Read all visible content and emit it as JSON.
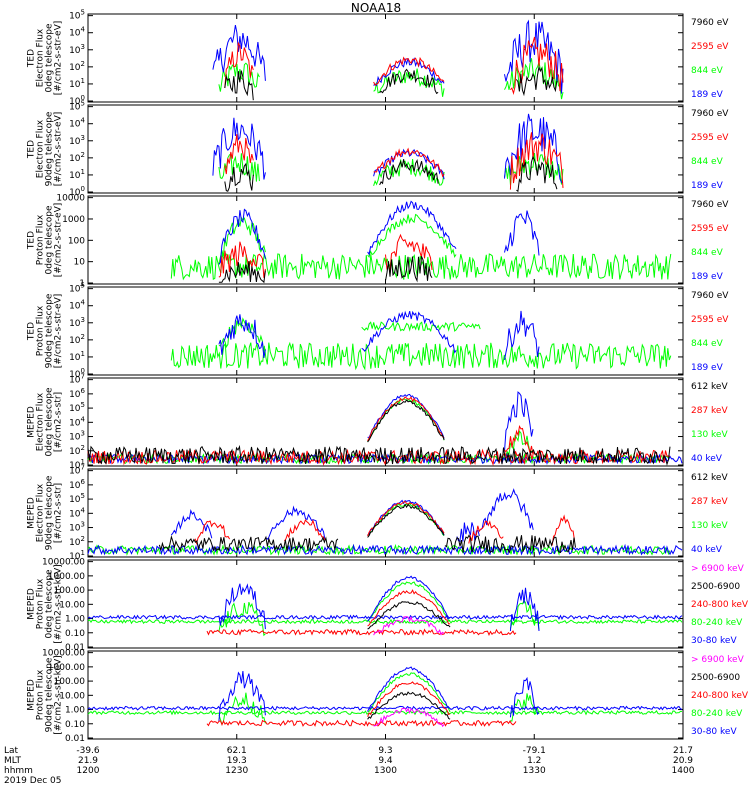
{
  "figure": {
    "title": "NOAA18",
    "date": "2019 Dec 05"
  },
  "colors": {
    "blue": "#0000ff",
    "red": "#ff0000",
    "green": "#00ff00",
    "black": "#000000",
    "magenta": "#ff00ff"
  },
  "footer": {
    "row_labels": [
      "Lat",
      "MLT",
      "hhmm"
    ],
    "columns": [
      {
        "lat": "-39.6",
        "mlt": "21.9",
        "hhmm": "1200"
      },
      {
        "lat": "62.1",
        "mlt": "19.3",
        "hhmm": "1230"
      },
      {
        "lat": "9.3",
        "mlt": "9.4",
        "hhmm": "1300"
      },
      {
        "lat": "-79.1",
        "mlt": "1.2",
        "hhmm": "1330"
      },
      {
        "lat": "21.7",
        "mlt": "20.9",
        "hhmm": "1400"
      }
    ]
  },
  "chart_data": [
    {
      "type": "line",
      "ylabel": [
        "TED",
        "Electron Flux",
        "0deg telescope",
        "[#/cm2-s-str-eV]"
      ],
      "yscale": "log",
      "yticks": [
        "10^0",
        "10^1",
        "10^2",
        "10^3",
        "10^4",
        "10^5"
      ],
      "ylim_exp": [
        0,
        5
      ],
      "xlim": [
        "1200",
        "1400"
      ],
      "legend": [
        {
          "label": "7960 eV",
          "color": "black"
        },
        {
          "label": "2595 eV",
          "color": "red"
        },
        {
          "label": "844 eV",
          "color": "green"
        },
        {
          "label": "189 eV",
          "color": "blue"
        }
      ]
    },
    {
      "type": "line",
      "ylabel": [
        "TED",
        "Electron Flux",
        "90deg telescope",
        "[#/cm2-s-str-eV]"
      ],
      "yscale": "log",
      "yticks": [
        "10^0",
        "10^1",
        "10^2",
        "10^3",
        "10^4",
        "10^5"
      ],
      "ylim_exp": [
        0,
        5
      ],
      "xlim": [
        "1200",
        "1400"
      ],
      "legend": [
        {
          "label": "7960 eV",
          "color": "black"
        },
        {
          "label": "2595 eV",
          "color": "red"
        },
        {
          "label": "844 eV",
          "color": "green"
        },
        {
          "label": "189 eV",
          "color": "blue"
        }
      ]
    },
    {
      "type": "line",
      "ylabel": [
        "TED",
        "Proton Flux",
        "0deg telescope",
        "[#/cm2-s-str-eV]"
      ],
      "yscale": "log",
      "yticks": [
        "1",
        "10",
        "100",
        "1000",
        "10000"
      ],
      "ylim_exp": [
        -0.2,
        4.15
      ],
      "xlim": [
        "1200",
        "1400"
      ],
      "legend": [
        {
          "label": "7960 eV",
          "color": "black"
        },
        {
          "label": "2595 eV",
          "color": "red"
        },
        {
          "label": "844 eV",
          "color": "green"
        },
        {
          "label": "189 eV",
          "color": "blue"
        }
      ]
    },
    {
      "type": "line",
      "ylabel": [
        "TED",
        "Proton Flux",
        "90deg telescope",
        "[#/cm2-s-str-eV]"
      ],
      "yscale": "log",
      "yticks": [
        "10^0",
        "10^1",
        "10^2",
        "10^3",
        "10^4",
        "10^5"
      ],
      "ylim_exp": [
        0,
        5
      ],
      "xlim": [
        "1200",
        "1400"
      ],
      "legend": [
        {
          "label": "7960 eV",
          "color": "black"
        },
        {
          "label": "2595 eV",
          "color": "red"
        },
        {
          "label": "844 eV",
          "color": "green"
        },
        {
          "label": "189 eV",
          "color": "blue"
        }
      ]
    },
    {
      "type": "line",
      "ylabel": [
        "MEPED",
        "Electron Flux",
        "0deg telescope",
        "[#/cm2-s-str]"
      ],
      "yscale": "log",
      "yticks": [
        "10^1",
        "10^2",
        "10^3",
        "10^4",
        "10^5",
        "10^6",
        "10^7"
      ],
      "ylim_exp": [
        1,
        7
      ],
      "xlim": [
        "1200",
        "1400"
      ],
      "legend": [
        {
          "label": "612 keV",
          "color": "black"
        },
        {
          "label": "287 keV",
          "color": "red"
        },
        {
          "label": "130 keV",
          "color": "green"
        },
        {
          "label": "40 keV",
          "color": "blue"
        }
      ]
    },
    {
      "type": "line",
      "ylabel": [
        "MEPED",
        "Electron Flux",
        "90deg telescope",
        "[#/cm2-s-str]"
      ],
      "yscale": "log",
      "yticks": [
        "10^1",
        "10^2",
        "10^3",
        "10^4",
        "10^5",
        "10^6",
        "10^7"
      ],
      "ylim_exp": [
        1,
        7
      ],
      "xlim": [
        "1200",
        "1400"
      ],
      "legend": [
        {
          "label": "612 keV",
          "color": "black"
        },
        {
          "label": "287 keV",
          "color": "red"
        },
        {
          "label": "130 keV",
          "color": "green"
        },
        {
          "label": "40 keV",
          "color": "blue"
        }
      ]
    },
    {
      "type": "line",
      "ylabel": [
        "MEPED",
        "Proton Flux",
        "0deg telescope",
        "[#/cm2-s-str-keV]"
      ],
      "yscale": "log",
      "yticks": [
        "0.01",
        "0.10",
        "1.00",
        "10.00",
        "100.00",
        "1000.00",
        "10000.00"
      ],
      "ylim_exp": [
        -2,
        4
      ],
      "xlim": [
        "1200",
        "1400"
      ],
      "legend": [
        {
          "label": "> 6900 keV",
          "color": "magenta"
        },
        {
          "label": "2500-6900",
          "color": "black"
        },
        {
          "label": "240-800 keV",
          "color": "red"
        },
        {
          "label": "80-240 keV",
          "color": "green"
        },
        {
          "label": "30-80 keV",
          "color": "blue"
        }
      ]
    },
    {
      "type": "line",
      "ylabel": [
        "MEPED",
        "Proton Flux",
        "90deg telescope",
        "[#/cm2-s-str-keV]"
      ],
      "yscale": "log",
      "yticks": [
        "0.01",
        "0.10",
        "1.00",
        "10.00",
        "100.00",
        "1000.00",
        "10000.00"
      ],
      "ylim_exp": [
        -2,
        4
      ],
      "xlim": [
        "1200",
        "1400"
      ],
      "legend": [
        {
          "label": "> 6900 keV",
          "color": "magenta"
        },
        {
          "label": "2500-6900",
          "color": "black"
        },
        {
          "label": "240-800 keV",
          "color": "red"
        },
        {
          "label": "80-240 keV",
          "color": "green"
        },
        {
          "label": "30-80 keV",
          "color": "blue"
        }
      ]
    }
  ]
}
